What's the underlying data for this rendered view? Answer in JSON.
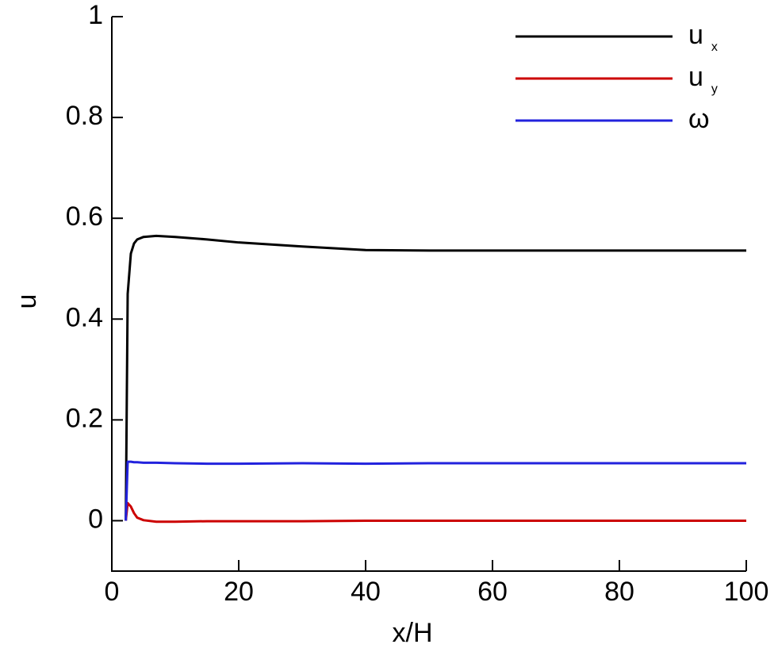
{
  "chart_data": {
    "type": "line",
    "x_label": "x/H",
    "y_label": "u",
    "x": [
      2.2,
      2.5,
      3,
      3.5,
      4,
      5,
      7,
      10,
      15,
      20,
      30,
      40,
      50,
      60,
      80,
      100
    ],
    "series": [
      {
        "name": "u",
        "subscript": "x",
        "color": "#000000",
        "values": [
          0,
          0.45,
          0.53,
          0.55,
          0.558,
          0.563,
          0.565,
          0.563,
          0.558,
          0.552,
          0.544,
          0.537,
          0.536,
          0.536,
          0.536,
          0.536
        ]
      },
      {
        "name": "u",
        "subscript": "y",
        "color": "#cc0000",
        "values": [
          0,
          0.035,
          0.028,
          0.015,
          0.006,
          0.001,
          -0.002,
          -0.002,
          -0.001,
          -0.001,
          -0.001,
          0,
          0,
          0,
          0,
          0
        ]
      },
      {
        "name": "ω",
        "color": "#2222dd",
        "values": [
          0,
          0.117,
          0.117,
          0.116,
          0.116,
          0.115,
          0.115,
          0.114,
          0.113,
          0.113,
          0.114,
          0.113,
          0.114,
          0.114,
          0.114,
          0.114
        ]
      }
    ],
    "xlim": [
      0,
      100
    ],
    "xticks": [
      0,
      20,
      40,
      60,
      80,
      100
    ],
    "ylim": [
      -0.1,
      1
    ],
    "yticks": [
      0,
      0.2,
      0.4,
      0.6,
      0.8,
      1
    ],
    "grid": false,
    "legend": "top-right"
  }
}
